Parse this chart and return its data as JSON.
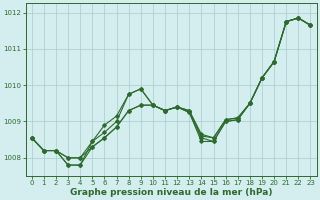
{
  "xlabel": "Graphe pression niveau de la mer (hPa)",
  "background_color": "#d4eef0",
  "grid_color": "#a8cccc",
  "line_color": "#2d6a2d",
  "marker_color": "#2d6a2d",
  "x": [
    0,
    1,
    2,
    3,
    4,
    5,
    6,
    7,
    8,
    9,
    10,
    11,
    12,
    13,
    14,
    15,
    16,
    17,
    18,
    19,
    20,
    21,
    22,
    23
  ],
  "series1": [
    1008.55,
    1008.2,
    1008.2,
    1007.8,
    1007.8,
    1008.45,
    1008.7,
    1009.0,
    1009.75,
    1009.9,
    1009.45,
    1009.3,
    1009.4,
    1009.3,
    1008.6,
    1008.55,
    1009.05,
    1009.1,
    1009.5,
    1010.2,
    1010.65,
    1011.75,
    1011.85,
    1011.65
  ],
  "series2": [
    1008.55,
    1008.2,
    1008.2,
    1008.0,
    1008.0,
    1008.3,
    1008.55,
    1008.85,
    1009.3,
    1009.45,
    1009.45,
    1009.3,
    1009.4,
    1009.3,
    1008.65,
    1008.55,
    1009.05,
    1009.1,
    1009.5,
    1010.2,
    1010.65,
    1011.75,
    1011.85,
    1011.65
  ],
  "series3": [
    1008.55,
    1008.2,
    1008.2,
    1008.0,
    1008.0,
    1008.45,
    1008.9,
    1009.15,
    1009.75,
    1009.9,
    1009.45,
    1009.3,
    1009.4,
    1009.25,
    1008.45,
    1008.45,
    1009.0,
    1009.05,
    1009.5,
    1010.2,
    1010.65,
    1011.75,
    1011.85,
    1011.65
  ],
  "series4": [
    1008.55,
    1008.2,
    1008.2,
    1007.8,
    1007.8,
    1008.3,
    1008.55,
    1008.85,
    1009.3,
    1009.45,
    1009.45,
    1009.3,
    1009.4,
    1009.25,
    1008.55,
    1008.45,
    1009.0,
    1009.05,
    1009.5,
    1010.2,
    1010.65,
    1011.75,
    1011.85,
    1011.65
  ],
  "ylim": [
    1007.5,
    1012.25
  ],
  "yticks": [
    1008,
    1009,
    1010,
    1011,
    1012
  ],
  "xticks": [
    0,
    1,
    2,
    3,
    4,
    5,
    6,
    7,
    8,
    9,
    10,
    11,
    12,
    13,
    14,
    15,
    16,
    17,
    18,
    19,
    20,
    21,
    22,
    23
  ],
  "tick_fontsize": 5.0,
  "xlabel_fontsize": 6.5
}
